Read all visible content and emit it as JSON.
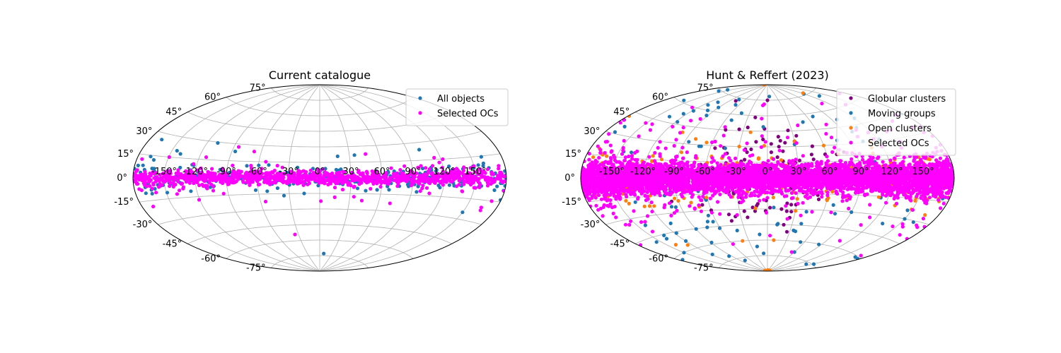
{
  "chart_data": [
    {
      "type": "scatter",
      "projection": "aitoff",
      "title": "Current catalogue",
      "lon_ticks": [
        "-150°",
        "-120°",
        "-90°",
        "-60°",
        "-30°",
        "0°",
        "30°",
        "60°",
        "90°",
        "120°",
        "150°"
      ],
      "lat_ticks": [
        "-75°",
        "-60°",
        "-45°",
        "-30°",
        "-15°",
        "0°",
        "15°",
        "30°",
        "45°",
        "60°",
        "75°"
      ],
      "grid": true,
      "legend_position": "top-right",
      "series": [
        {
          "name": "All objects",
          "color": "#1f77b4",
          "lon_range_deg": [
            -180,
            180
          ],
          "distribution": "galactic plane concentrated with sparse off-plane scatter",
          "points": [
            [
              -145,
              20
            ],
            [
              -140,
              18
            ],
            [
              10,
              -73
            ],
            [
              -20,
              -2
            ],
            [
              45,
              -12
            ],
            [
              65,
              -5
            ],
            [
              100,
              8
            ],
            [
              -60,
              5
            ],
            [
              -110,
              -8
            ],
            [
              160,
              10
            ],
            [
              170,
              -8
            ],
            [
              150,
              -25
            ],
            [
              -170,
              -10
            ]
          ]
        },
        {
          "name": "Selected OCs",
          "color": "#ff00ff",
          "lon_range_deg": [
            -180,
            180
          ],
          "distribution": "concentrated near galactic latitude 0°",
          "points": [
            [
              -35,
              -54
            ],
            [
              -55,
              -22
            ],
            [
              -160,
              -10
            ],
            [
              -175,
              12
            ],
            [
              110,
              10
            ],
            [
              140,
              8
            ],
            [
              165,
              -20
            ],
            [
              -140,
              -12
            ]
          ]
        }
      ]
    },
    {
      "type": "scatter",
      "projection": "aitoff",
      "title": "Hunt & Reffert (2023)",
      "lon_ticks": [
        "-150°",
        "-120°",
        "-90°",
        "-60°",
        "-30°",
        "0°",
        "30°",
        "60°",
        "90°",
        "120°",
        "150°"
      ],
      "lat_ticks": [
        "-75°",
        "-60°",
        "-45°",
        "-30°",
        "-15°",
        "0°",
        "15°",
        "30°",
        "45°",
        "60°",
        "75°"
      ],
      "grid": true,
      "legend_position": "top-right",
      "series": [
        {
          "name": "Globular clusters",
          "color": "#800080",
          "distribution": "concentrated toward galactic centre, spread in latitude",
          "points": [
            [
              5,
              -15
            ],
            [
              10,
              20
            ],
            [
              -10,
              -25
            ],
            [
              15,
              -30
            ],
            [
              30,
              35
            ],
            [
              -30,
              10
            ],
            [
              20,
              -45
            ],
            [
              0,
              75
            ],
            [
              -60,
              -30
            ],
            [
              60,
              -20
            ],
            [
              5,
              -5
            ],
            [
              -5,
              5
            ]
          ]
        },
        {
          "name": "Moving groups",
          "color": "#1f77b4",
          "distribution": "all-sky scatter",
          "points": [
            [
              -70,
              -40
            ],
            [
              -75,
              -45
            ],
            [
              -150,
              -60
            ],
            [
              120,
              50
            ],
            [
              -100,
              60
            ],
            [
              60,
              -70
            ],
            [
              150,
              -30
            ],
            [
              -40,
              -50
            ],
            [
              90,
              -30
            ],
            [
              100,
              40
            ]
          ]
        },
        {
          "name": "Open clusters",
          "color": "#ff7f0e",
          "distribution": "galactic plane with moderate latitude spread",
          "points": [
            [
              10,
              -60
            ],
            [
              -40,
              -60
            ],
            [
              -80,
              35
            ],
            [
              -30,
              30
            ],
            [
              150,
              15
            ],
            [
              -160,
              15
            ],
            [
              30,
              -20
            ],
            [
              -5,
              -10
            ],
            [
              60,
              30
            ],
            [
              -90,
              -20
            ]
          ]
        },
        {
          "name": "Selected OCs",
          "color": "#ff00ff",
          "distribution": "dense band along galactic latitude 0°",
          "points": [
            [
              -130,
              -30
            ],
            [
              -140,
              -25
            ],
            [
              -100,
              -30
            ],
            [
              80,
              -20
            ],
            [
              120,
              -20
            ],
            [
              -50,
              30
            ],
            [
              -10,
              70
            ],
            [
              40,
              50
            ]
          ]
        }
      ]
    }
  ]
}
